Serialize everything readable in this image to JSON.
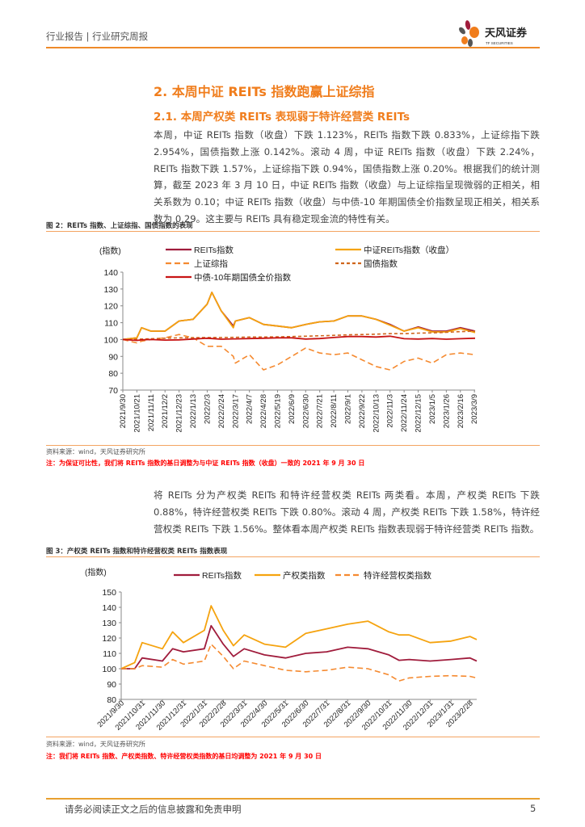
{
  "header": {
    "title": "行业报告 | 行业研究周报",
    "logo_name": "天风证券",
    "logo_sub": "TF SECURITIES"
  },
  "section": {
    "heading": "2. 本周中证 REITs 指数跑赢上证综指",
    "subheading": "2.1. 本周产权类 REITs 表现弱于特许经营类 REITs",
    "para1": "本周，中证 REITs 指数（收盘）下跌 1.123%，REITs 指数下跌 0.833%，上证综指下跌 2.954%，国债指数上涨 0.142%。滚动 4 周，中证 REITs 指数（收盘）下跌 2.24%，REITs 指数下跌 1.57%，上证综指下跌 0.94%，国债指数上涨 0.20%。根据我们的统计测算，截至 2023 年 3 月 10 日，中证 REITs 指数（收盘）与上证综指呈现微弱的正相关，相关系数为 0.10；中证 REITs 指数（收盘）与中债-10 年期国债全价指数呈现正相关，相关系数为 0.29。这主要与 REITs 具有稳定现金流的特性有关。",
    "para2": "将 REITs 分为产权类 REITs 和特许经营权类 REITs 两类看。本周，产权类 REITs 下跌 0.88%，特许经营权类 REITs 下跌 0.80%。滚动 4 周，产权类 REITs 下跌 1.58%，特许经营权类 REITs 下跌 1.56%。整体看本周产权类 REITs 指数表现弱于特许经营类 REITs 指数。"
  },
  "fig2": {
    "title": "图 2：REITs 指数、上证综指、国债指数的表现",
    "source": "资料来源：wind，天风证券研究所",
    "note": "注：为保证可比性，我们将 REITs 指数的基日调整为与中证 REITs 指数（收盘）一致的 2021 年 9 月 30 日"
  },
  "fig3": {
    "title": "图 3：产权类 REITs 指数和特许经营权类 REITs 指数表现",
    "source": "资料来源：wind，天风证券研究所",
    "note": "注：我们将 REITs 指数、产权类指数、特许经营权类指数的基日均调整为 2021 年 9 月 30 日"
  },
  "footer": {
    "disclaimer": "请务必阅读正文之后的信息披露和免责申明",
    "page": "5"
  },
  "chart_data": [
    {
      "type": "line",
      "ylabel": "(指数)",
      "ylim": [
        70,
        140
      ],
      "yticks": [
        70,
        80,
        90,
        100,
        110,
        120,
        130,
        140
      ],
      "xticks": [
        "2021/9/30",
        "2021/10/21",
        "2021/11/11",
        "2021/12/2",
        "2021/12/23",
        "2022/1/13",
        "2022/2/3",
        "2022/2/24",
        "2022/3/17",
        "2022/4/7",
        "2022/4/28",
        "2022/5/19",
        "2022/6/9",
        "2022/6/30",
        "2022/7/21",
        "2022/8/11",
        "2022/9/1",
        "2022/9/22",
        "2022/10/13",
        "2022/11/3",
        "2022/11/24",
        "2022/12/15",
        "2023/1/5",
        "2023/1/26",
        "2023/2/16",
        "2023/3/9"
      ],
      "x": [
        "2021/9/30",
        "2021/10/21",
        "2021/10/28",
        "2021/11/11",
        "2021/12/2",
        "2021/12/23",
        "2022/1/13",
        "2022/2/3",
        "2022/2/10",
        "2022/2/24",
        "2022/3/14",
        "2022/3/17",
        "2022/4/7",
        "2022/4/28",
        "2022/5/19",
        "2022/6/9",
        "2022/6/30",
        "2022/7/21",
        "2022/8/11",
        "2022/9/1",
        "2022/9/22",
        "2022/10/13",
        "2022/11/3",
        "2022/11/24",
        "2022/12/15",
        "2023/1/5",
        "2023/1/26",
        "2023/2/16",
        "2023/3/10"
      ],
      "series": [
        {
          "name": "REITs指数",
          "color": "#a01c3c",
          "dash": "",
          "values": [
            100,
            101,
            107,
            105,
            105,
            111,
            112,
            121,
            128,
            117,
            108,
            111,
            113,
            109,
            108,
            107,
            109,
            110.5,
            111,
            114,
            114,
            112,
            109,
            105,
            107.5,
            105,
            105,
            107,
            105
          ]
        },
        {
          "name": "中证REITs指数（收盘）",
          "color": "#f5a30f",
          "dash": "",
          "values": [
            100,
            101,
            107,
            105,
            105,
            111,
            112,
            121,
            128,
            117,
            107,
            111,
            113,
            109,
            108,
            107,
            109,
            110.5,
            111,
            114,
            114,
            112,
            108.5,
            105,
            107,
            104.5,
            104.5,
            106.5,
            104.2
          ]
        },
        {
          "name": "上证综指",
          "color": "#f58a30",
          "dash": "7,4",
          "values": [
            100,
            98,
            99,
            100,
            101,
            103,
            101,
            96,
            96,
            96,
            90,
            86,
            91,
            82,
            85,
            90,
            95,
            92,
            91,
            92,
            88,
            84,
            82,
            87,
            89,
            86,
            91,
            92,
            91
          ]
        },
        {
          "name": "国债指数",
          "color": "#d0651c",
          "dash": "4,3",
          "values": [
            100,
            100.2,
            100.3,
            100.5,
            100.8,
            101,
            101.1,
            101.2,
            101.2,
            101.2,
            101.3,
            101.3,
            101.5,
            101.5,
            101.6,
            101.8,
            102,
            102.2,
            102.5,
            102.8,
            103,
            103.2,
            103.5,
            103.5,
            103.8,
            104,
            104.3,
            104.7,
            105
          ]
        },
        {
          "name": "中债-10年期国债全价指数",
          "color": "#c81414",
          "dash": "",
          "values": [
            100,
            99.5,
            99.8,
            100,
            99.7,
            99.8,
            100.3,
            100.8,
            100.6,
            100.2,
            100.4,
            100.4,
            100.6,
            100.8,
            101,
            101,
            100.3,
            100.6,
            101.2,
            101.8,
            101.8,
            101.5,
            102,
            100.5,
            100.3,
            100.6,
            100.2,
            100.5,
            100.8
          ]
        }
      ]
    },
    {
      "type": "line",
      "ylabel": "(指数)",
      "ylim": [
        80,
        150
      ],
      "yticks": [
        80,
        90,
        100,
        110,
        120,
        130,
        140,
        150
      ],
      "xticks": [
        "2021/9/30",
        "2021/10/31",
        "2021/11/30",
        "2021/12/31",
        "2022/1/31",
        "2022/2/28",
        "2022/3/31",
        "2022/4/30",
        "2022/5/31",
        "2022/6/30",
        "2022/7/31",
        "2022/8/31",
        "2022/9/30",
        "2022/10/31",
        "2022/11/30",
        "2022/12/31",
        "2023/1/31",
        "2023/2/28"
      ],
      "x": [
        "2021/9/30",
        "2021/10/20",
        "2021/10/31",
        "2021/11/30",
        "2021/12/15",
        "2021/12/31",
        "2022/1/31",
        "2022/2/10",
        "2022/2/28",
        "2022/3/15",
        "2022/3/31",
        "2022/4/30",
        "2022/5/31",
        "2022/6/30",
        "2022/7/31",
        "2022/8/31",
        "2022/9/30",
        "2022/10/31",
        "2022/11/15",
        "2022/11/30",
        "2022/12/31",
        "2023/1/31",
        "2023/2/28",
        "2023/3/10"
      ],
      "series": [
        {
          "name": "REITs指数",
          "color": "#a01c3c",
          "dash": "",
          "values": [
            100,
            100,
            107,
            105,
            113,
            111,
            113,
            128,
            116,
            108,
            113,
            109,
            107,
            110,
            111,
            114,
            113,
            109,
            105.5,
            106,
            105,
            106,
            107,
            105
          ]
        },
        {
          "name": "产权类指数",
          "color": "#f5a30f",
          "dash": "",
          "values": [
            100,
            104,
            117,
            113,
            124,
            117,
            125,
            141,
            125,
            115,
            122,
            116,
            114,
            123,
            126,
            129,
            131,
            124,
            122,
            122,
            117,
            118,
            121,
            119
          ]
        },
        {
          "name": "特许经营权类指数",
          "color": "#f58a30",
          "dash": "7,4",
          "values": [
            100,
            100,
            102,
            101,
            106,
            103,
            105,
            116,
            108,
            100,
            105,
            102,
            99,
            98,
            99,
            101,
            100,
            96,
            92,
            94,
            95,
            95.5,
            95,
            94
          ]
        }
      ]
    }
  ]
}
